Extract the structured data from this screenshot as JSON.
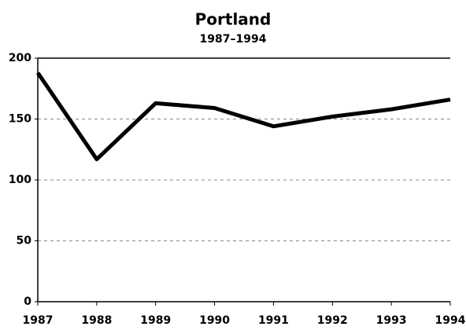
{
  "chart_data": {
    "type": "line",
    "title": "Portland",
    "subtitle": "1987–1994",
    "x": [
      1987,
      1988,
      1989,
      1990,
      1991,
      1992,
      1993,
      1994
    ],
    "values": [
      188,
      117,
      163,
      159,
      144,
      152,
      158,
      166
    ],
    "color": "#000000",
    "xlim": [
      1987,
      1994
    ],
    "xticks": [
      1987,
      1988,
      1989,
      1990,
      1991,
      1992,
      1993,
      1994
    ],
    "ylim": [
      0,
      200
    ],
    "yticks": [
      0,
      50,
      100,
      150,
      200
    ],
    "grid": true
  }
}
